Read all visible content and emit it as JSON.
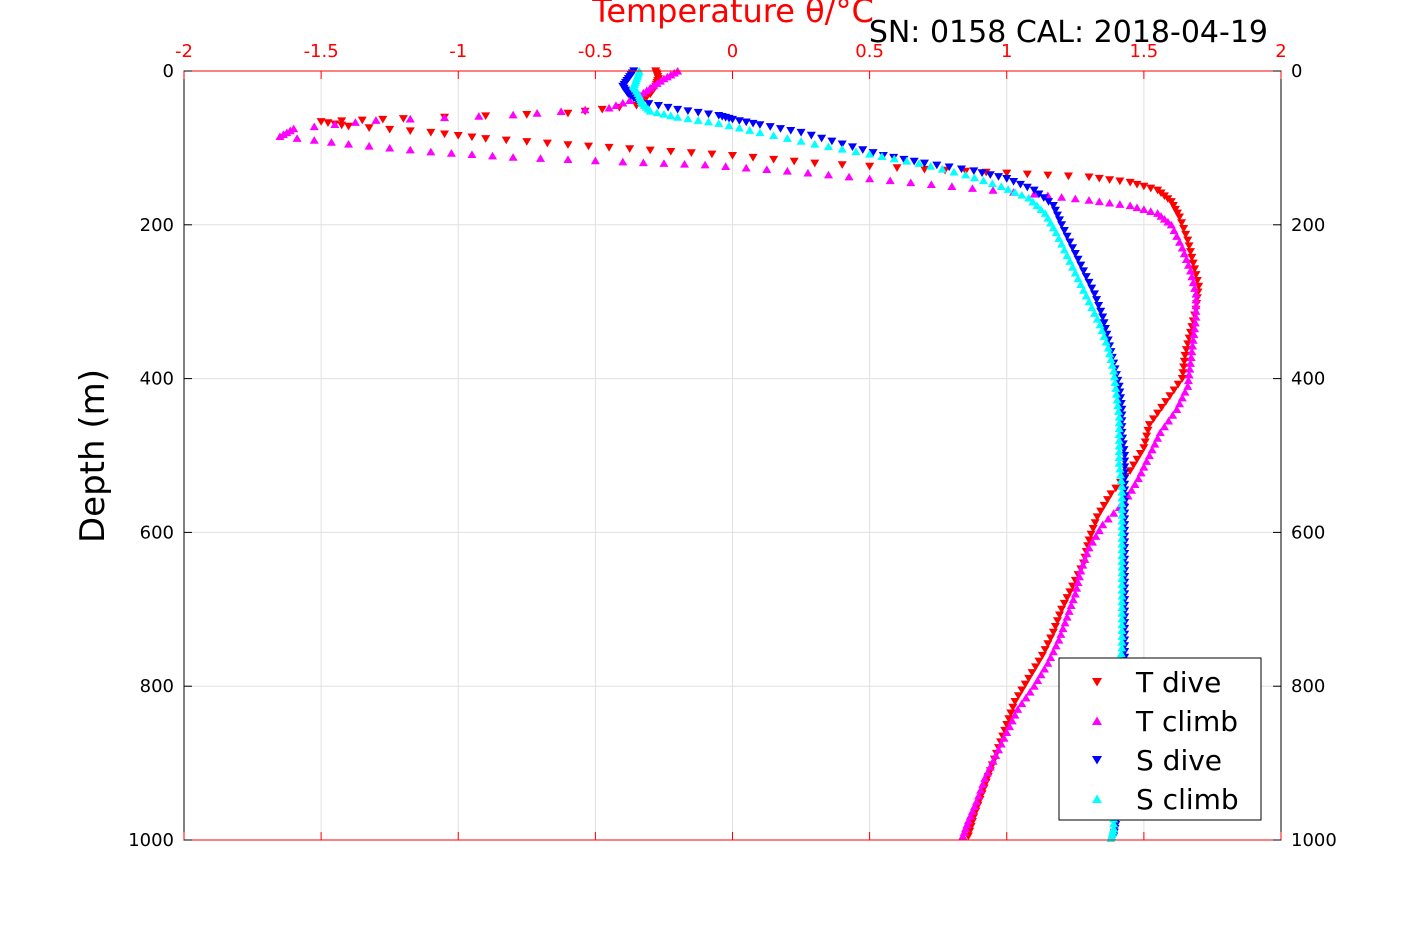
{
  "chart_data": {
    "type": "scatter",
    "title": "Temperature θ/°C",
    "title_color": "#ff0000",
    "annotation": "SN: 0158  CAL: 2018-04-19",
    "ylabel": "Depth (m)",
    "xlim": [
      -2,
      2
    ],
    "ylim": [
      0,
      1000
    ],
    "y_reversed": true,
    "grid": true,
    "legend_position": "bottom-right",
    "x_ticks": [
      "-2",
      "-1.5",
      "-1",
      "-0.5",
      "0",
      "0.5",
      "1",
      "1.5",
      "2"
    ],
    "x_tick_values": [
      -2,
      -1.5,
      -1,
      -0.5,
      0,
      0.5,
      1,
      1.5,
      2
    ],
    "y_ticks": [
      "0",
      "200",
      "400",
      "600",
      "800",
      "1000"
    ],
    "y_tick_values": [
      0,
      200,
      400,
      600,
      800,
      1000
    ],
    "series": [
      {
        "name": "T dive",
        "color": "#ff0000",
        "marker": "triangle-down",
        "points": [
          [
            -0.28,
            0
          ],
          [
            -0.27,
            10
          ],
          [
            -0.28,
            20
          ],
          [
            -0.3,
            30
          ],
          [
            -0.35,
            45
          ],
          [
            -0.6,
            55
          ],
          [
            -1.2,
            62
          ],
          [
            -1.5,
            66
          ],
          [
            -1.4,
            72
          ],
          [
            -1.1,
            80
          ],
          [
            -0.9,
            88
          ],
          [
            -0.6,
            96
          ],
          [
            -0.3,
            103
          ],
          [
            0.0,
            110
          ],
          [
            0.3,
            120
          ],
          [
            0.7,
            128
          ],
          [
            1.0,
            133
          ],
          [
            1.3,
            138
          ],
          [
            1.45,
            145
          ],
          [
            1.55,
            155
          ],
          [
            1.6,
            170
          ],
          [
            1.63,
            190
          ],
          [
            1.66,
            220
          ],
          [
            1.68,
            250
          ],
          [
            1.7,
            280
          ],
          [
            1.69,
            310
          ],
          [
            1.67,
            340
          ],
          [
            1.65,
            370
          ],
          [
            1.64,
            400
          ],
          [
            1.58,
            430
          ],
          [
            1.52,
            460
          ],
          [
            1.5,
            490
          ],
          [
            1.45,
            520
          ],
          [
            1.38,
            550
          ],
          [
            1.33,
            580
          ],
          [
            1.3,
            610
          ],
          [
            1.28,
            640
          ],
          [
            1.24,
            670
          ],
          [
            1.2,
            700
          ],
          [
            1.17,
            730
          ],
          [
            1.13,
            760
          ],
          [
            1.08,
            790
          ],
          [
            1.03,
            820
          ],
          [
            1.0,
            850
          ],
          [
            0.97,
            880
          ],
          [
            0.94,
            910
          ],
          [
            0.91,
            940
          ],
          [
            0.88,
            970
          ],
          [
            0.86,
            995
          ]
        ]
      },
      {
        "name": "T climb",
        "color": "#ff00ff",
        "marker": "triangle-up",
        "points": [
          [
            -0.2,
            0
          ],
          [
            -0.25,
            10
          ],
          [
            -0.3,
            22
          ],
          [
            -0.35,
            35
          ],
          [
            -0.45,
            48
          ],
          [
            -0.8,
            57
          ],
          [
            -1.3,
            64
          ],
          [
            -1.6,
            75
          ],
          [
            -1.65,
            85
          ],
          [
            -1.4,
            95
          ],
          [
            -1.1,
            105
          ],
          [
            -0.8,
            112
          ],
          [
            -0.4,
            118
          ],
          [
            -0.1,
            122
          ],
          [
            0.2,
            130
          ],
          [
            0.5,
            140
          ],
          [
            0.8,
            150
          ],
          [
            1.1,
            160
          ],
          [
            1.3,
            168
          ],
          [
            1.45,
            175
          ],
          [
            1.55,
            185
          ],
          [
            1.6,
            200
          ],
          [
            1.64,
            230
          ],
          [
            1.67,
            260
          ],
          [
            1.69,
            290
          ],
          [
            1.69,
            320
          ],
          [
            1.68,
            350
          ],
          [
            1.67,
            380
          ],
          [
            1.66,
            410
          ],
          [
            1.62,
            440
          ],
          [
            1.56,
            470
          ],
          [
            1.52,
            500
          ],
          [
            1.48,
            530
          ],
          [
            1.43,
            560
          ],
          [
            1.35,
            590
          ],
          [
            1.3,
            620
          ],
          [
            1.27,
            650
          ],
          [
            1.25,
            680
          ],
          [
            1.22,
            710
          ],
          [
            1.19,
            740
          ],
          [
            1.15,
            770
          ],
          [
            1.1,
            800
          ],
          [
            1.04,
            830
          ],
          [
            1.0,
            860
          ],
          [
            0.96,
            890
          ],
          [
            0.92,
            920
          ],
          [
            0.89,
            950
          ],
          [
            0.86,
            975
          ],
          [
            0.84,
            995
          ]
        ]
      },
      {
        "name": "S dive",
        "color": "#0000ff",
        "marker": "triangle-down",
        "points": [
          [
            -0.36,
            0
          ],
          [
            -0.38,
            10
          ],
          [
            -0.4,
            20
          ],
          [
            -0.38,
            30
          ],
          [
            -0.34,
            40
          ],
          [
            -0.2,
            50
          ],
          [
            -0.05,
            58
          ],
          [
            0.0,
            63
          ],
          [
            0.1,
            70
          ],
          [
            0.25,
            80
          ],
          [
            0.4,
            95
          ],
          [
            0.55,
            110
          ],
          [
            0.7,
            120
          ],
          [
            0.88,
            130
          ],
          [
            1.0,
            140
          ],
          [
            1.1,
            155
          ],
          [
            1.17,
            175
          ],
          [
            1.2,
            200
          ],
          [
            1.24,
            230
          ],
          [
            1.28,
            260
          ],
          [
            1.32,
            290
          ],
          [
            1.35,
            320
          ],
          [
            1.37,
            350
          ],
          [
            1.39,
            380
          ],
          [
            1.41,
            410
          ],
          [
            1.42,
            440
          ],
          [
            1.42,
            470
          ],
          [
            1.43,
            500
          ],
          [
            1.43,
            530
          ],
          [
            1.43,
            560
          ],
          [
            1.43,
            590
          ],
          [
            1.43,
            620
          ],
          [
            1.43,
            650
          ],
          [
            1.43,
            680
          ],
          [
            1.43,
            710
          ],
          [
            1.43,
            740
          ],
          [
            1.43,
            770
          ],
          [
            1.42,
            800
          ],
          [
            1.42,
            830
          ],
          [
            1.42,
            860
          ],
          [
            1.41,
            890
          ],
          [
            1.41,
            920
          ],
          [
            1.4,
            950
          ],
          [
            1.4,
            975
          ],
          [
            1.39,
            995
          ]
        ]
      },
      {
        "name": "S climb",
        "color": "#00ffff",
        "marker": "triangle-up",
        "points": [
          [
            -0.34,
            0
          ],
          [
            -0.35,
            10
          ],
          [
            -0.36,
            20
          ],
          [
            -0.34,
            32
          ],
          [
            -0.33,
            42
          ],
          [
            -0.3,
            52
          ],
          [
            -0.2,
            60
          ],
          [
            -0.05,
            68
          ],
          [
            0.1,
            80
          ],
          [
            0.3,
            95
          ],
          [
            0.5,
            108
          ],
          [
            0.68,
            120
          ],
          [
            0.85,
            135
          ],
          [
            0.98,
            150
          ],
          [
            1.08,
            165
          ],
          [
            1.14,
            185
          ],
          [
            1.18,
            210
          ],
          [
            1.22,
            240
          ],
          [
            1.26,
            270
          ],
          [
            1.3,
            300
          ],
          [
            1.34,
            330
          ],
          [
            1.37,
            360
          ],
          [
            1.39,
            390
          ],
          [
            1.4,
            420
          ],
          [
            1.41,
            450
          ],
          [
            1.41,
            480
          ],
          [
            1.41,
            510
          ],
          [
            1.42,
            540
          ],
          [
            1.42,
            570
          ],
          [
            1.42,
            600
          ],
          [
            1.42,
            630
          ],
          [
            1.42,
            660
          ],
          [
            1.42,
            690
          ],
          [
            1.42,
            720
          ],
          [
            1.42,
            750
          ],
          [
            1.41,
            780
          ],
          [
            1.41,
            810
          ],
          [
            1.41,
            840
          ],
          [
            1.4,
            870
          ],
          [
            1.4,
            900
          ],
          [
            1.4,
            930
          ],
          [
            1.39,
            960
          ],
          [
            1.39,
            985
          ],
          [
            1.38,
            998
          ]
        ]
      }
    ]
  }
}
